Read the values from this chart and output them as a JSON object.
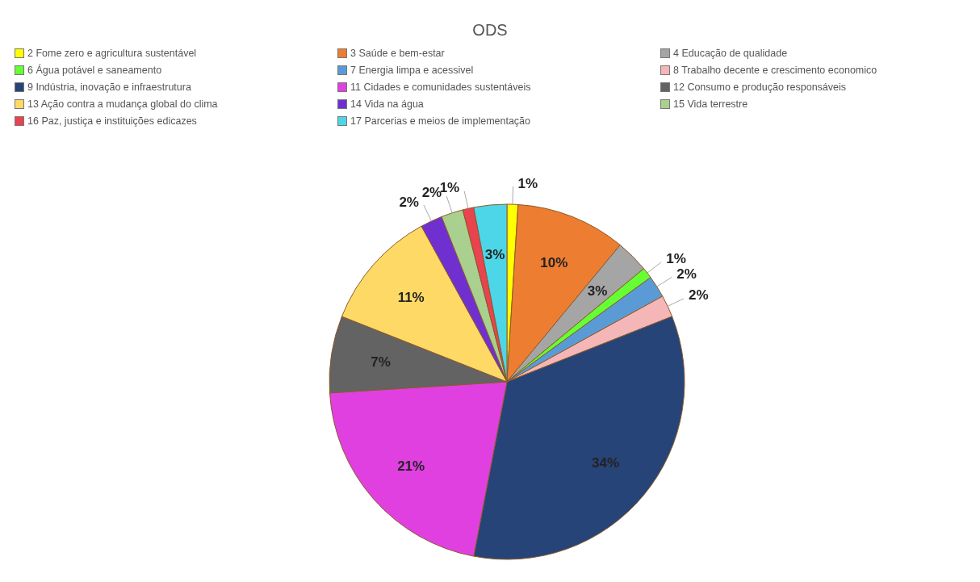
{
  "chart_data": {
    "type": "pie",
    "title": "ODS",
    "categories": [
      "2 Fome zero e agricultura sustentável",
      "3 Saúde e bem-estar",
      "4 Educação de qualidade",
      "6 Água potável e saneamento",
      "7 Energia limpa e acessivel",
      "8 Trabalho decente e crescimento economico",
      "9 Indústria, inovação e infraestrutura",
      "11 Cidades e comunidades sustentáveis",
      "12 Consumo e produção responsáveis",
      "13 Ação contra a mudança global do clima",
      "14 Vida na água",
      "15 Vida terrestre",
      "16 Paz, justiça e instituições edicazes",
      "17 Parcerias e meios de implementação"
    ],
    "values": [
      1,
      10,
      3,
      1,
      2,
      2,
      34,
      21,
      7,
      11,
      2,
      2,
      1,
      3
    ],
    "value_labels": [
      "1%",
      "10%",
      "3%",
      "1%",
      "2%",
      "2%",
      "34%",
      "21%",
      "7%",
      "11%",
      "2%",
      "2%",
      "1%",
      "3%"
    ],
    "colors": [
      "#ffff00",
      "#ed7d31",
      "#a5a5a5",
      "#66ff33",
      "#5b9bd5",
      "#f4b6b6",
      "#264478",
      "#e040e0",
      "#636363",
      "#ffd966",
      "#7030d0",
      "#a9d08e",
      "#e8434f",
      "#4dd6e8"
    ],
    "legend": "top"
  }
}
